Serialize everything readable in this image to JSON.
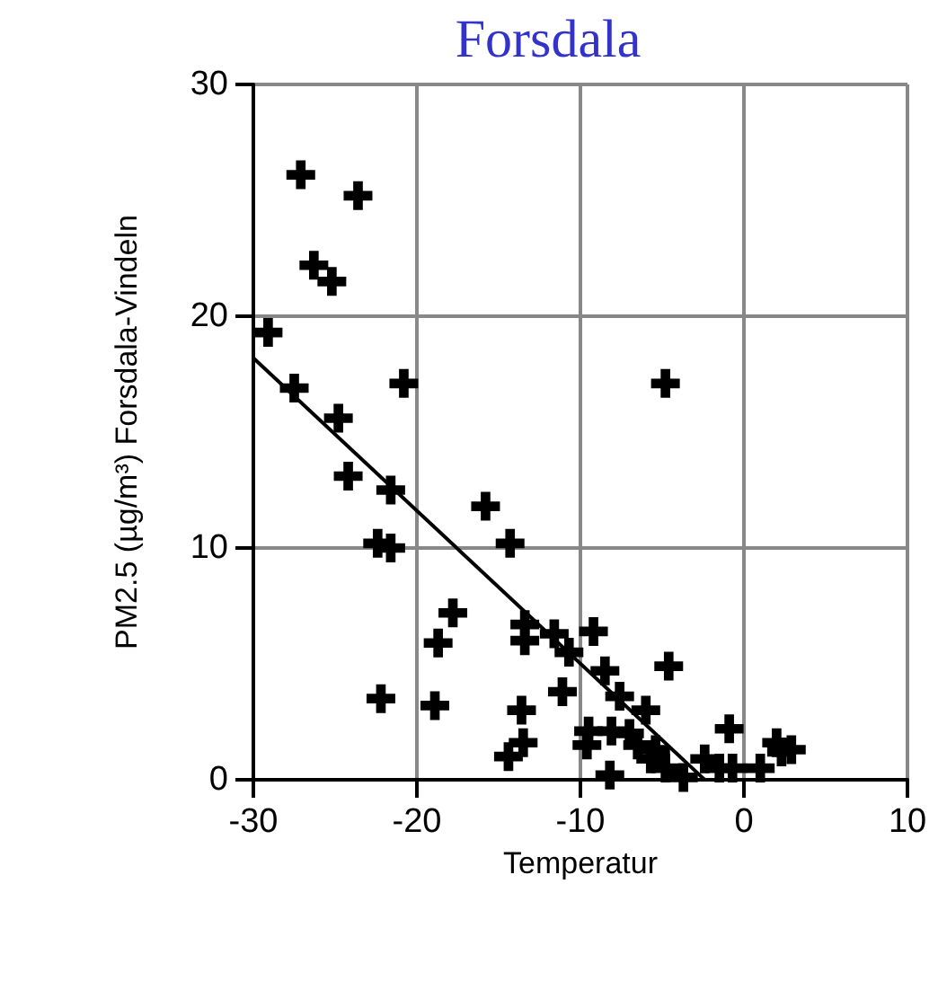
{
  "chart_data": {
    "type": "scatter",
    "title": "Forsdala",
    "xlabel": "Temperatur",
    "ylabel": "PM2.5 (µg/m³) Forsdala-Vindeln",
    "xlim": [
      -30,
      10
    ],
    "xticks": [
      -30,
      -20,
      -10,
      0,
      10
    ],
    "ylim": [
      0,
      30
    ],
    "yticks": [
      0,
      10,
      20,
      30
    ],
    "grid": true,
    "series": [
      {
        "color": "#000000",
        "marker": "cross",
        "x": [
          -27.1,
          -23.6,
          -26.3,
          -25.2,
          -29.1,
          -27.5,
          -20.8,
          -24.8,
          -24.2,
          -21.6,
          -15.8,
          -22.4,
          -21.6,
          -14.3,
          -17.8,
          -18.7,
          -13.4,
          -13.4,
          -11.6,
          -10.7,
          -22.2,
          -18.9,
          -11.1,
          -13.6,
          -13.5,
          -14.4,
          -4.8,
          -9.2,
          -4.6,
          -8.5,
          -7.6,
          -6.0,
          -9.5,
          -9.6,
          -8.1,
          -7.0,
          -6.5,
          -5.4,
          -5.7,
          -4.8,
          -3.7,
          -8.2,
          -0.9,
          -2.4,
          -1.5,
          -0.7,
          1.0,
          2.0,
          2.9,
          2.3
        ],
        "values": [
          26.1,
          25.2,
          22.2,
          21.5,
          19.3,
          16.9,
          17.1,
          15.6,
          13.1,
          12.5,
          11.8,
          10.2,
          10.0,
          10.2,
          7.2,
          5.9,
          6.7,
          6.0,
          6.3,
          5.5,
          3.5,
          3.2,
          3.8,
          3.0,
          1.6,
          1.0,
          17.1,
          6.4,
          4.9,
          4.7,
          3.6,
          3.0,
          2.1,
          1.5,
          2.1,
          2.0,
          1.5,
          1.3,
          0.9,
          0.5,
          0.1,
          0.2,
          2.2,
          0.9,
          0.5,
          0.5,
          0.5,
          1.6,
          1.3,
          1.2
        ]
      },
      {
        "type": "line",
        "color": "#000000",
        "marker": "none",
        "x": [
          -30,
          -2.4
        ],
        "values": [
          18.2,
          0
        ]
      }
    ]
  }
}
